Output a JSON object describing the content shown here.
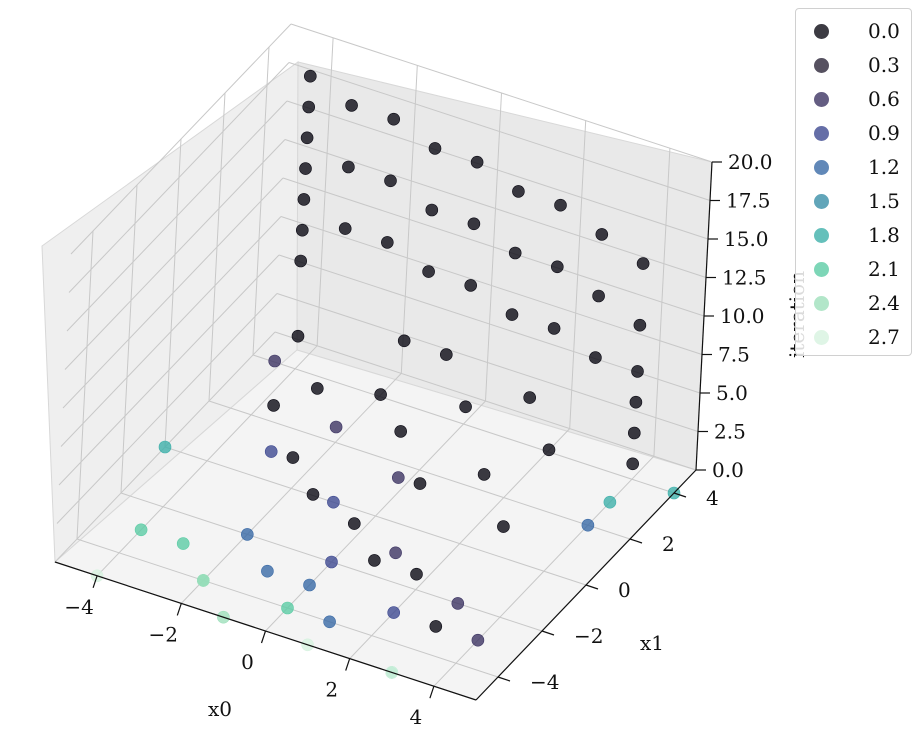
{
  "chart_data": {
    "type": "scatter",
    "projection": "3d",
    "xlabel": "x0",
    "ylabel": "x1",
    "zlabel": "iteration",
    "xlim": [
      -5,
      5
    ],
    "ylim": [
      -5,
      5
    ],
    "zlim": [
      0,
      20
    ],
    "x_ticks": [
      "−4",
      "−2",
      "0",
      "2",
      "4"
    ],
    "y_ticks": [
      "−4",
      "−2",
      "0",
      "2",
      "4"
    ],
    "z_ticks": [
      "0.0",
      "2.5",
      "5.0",
      "7.5",
      "10.0",
      "12.5",
      "15.0",
      "17.5",
      "20.0"
    ],
    "grid": true,
    "legend_position": "outside-top-right",
    "legend": [
      {
        "label": "0.0",
        "color": "#0b0a14"
      },
      {
        "label": "0.3",
        "color": "#2c2538"
      },
      {
        "label": "0.6",
        "color": "#3d3563"
      },
      {
        "label": "0.9",
        "color": "#3f4a91"
      },
      {
        "label": "1.2",
        "color": "#3a6aa6"
      },
      {
        "label": "1.5",
        "color": "#3a8fa8"
      },
      {
        "label": "1.8",
        "color": "#3fb0aa"
      },
      {
        "label": "2.1",
        "color": "#5ccca5"
      },
      {
        "label": "2.4",
        "color": "#9fe0bc"
      },
      {
        "label": "2.7",
        "color": "#d7f2e0"
      }
    ],
    "series": [
      {
        "color_value": 0.0,
        "points_note": "dense cloud: iteration 0–20 on a back wall near x1≈4, plus scattered points at low iterations",
        "points": [
          [
            -4,
            4,
            19
          ],
          [
            -4,
            4,
            17
          ],
          [
            -4,
            4,
            15
          ],
          [
            -4,
            4,
            13
          ],
          [
            -4,
            4,
            11
          ],
          [
            -4,
            4,
            9
          ],
          [
            -4,
            4,
            7
          ],
          [
            -3,
            4,
            18
          ],
          [
            -2,
            4,
            18
          ],
          [
            -1,
            4,
            17
          ],
          [
            0,
            4,
            17
          ],
          [
            1,
            4,
            16
          ],
          [
            2,
            4,
            16
          ],
          [
            3,
            4,
            15
          ],
          [
            4,
            4,
            14
          ],
          [
            -3,
            4,
            14
          ],
          [
            -2,
            4,
            14
          ],
          [
            -1,
            4,
            13
          ],
          [
            0,
            4,
            13
          ],
          [
            1,
            4,
            12
          ],
          [
            2,
            4,
            12
          ],
          [
            3,
            4,
            11
          ],
          [
            4,
            4,
            10
          ],
          [
            -3,
            4,
            10
          ],
          [
            -2,
            4,
            10
          ],
          [
            -1,
            4,
            9
          ],
          [
            0,
            4,
            9
          ],
          [
            1,
            4,
            8
          ],
          [
            2,
            4,
            8
          ],
          [
            3,
            4,
            7
          ],
          [
            4,
            4,
            7
          ],
          [
            4,
            4,
            5
          ],
          [
            4,
            4,
            3
          ],
          [
            4,
            4,
            1
          ],
          [
            -3,
            2,
            6
          ],
          [
            -2,
            1,
            5
          ],
          [
            -1,
            2,
            4
          ],
          [
            0,
            1,
            4
          ],
          [
            1,
            0,
            3
          ],
          [
            2,
            1,
            3
          ],
          [
            3,
            0,
            2
          ],
          [
            -2,
            0,
            2
          ],
          [
            -1,
            -1,
            2
          ],
          [
            0,
            -1,
            1
          ],
          [
            1,
            -2,
            1
          ],
          [
            2,
            -2,
            1
          ],
          [
            3,
            -3,
            0
          ],
          [
            -3,
            1,
            3
          ],
          [
            -1,
            3,
            6
          ],
          [
            0,
            3,
            6
          ],
          [
            1,
            2,
            5
          ],
          [
            2,
            3,
            5
          ],
          [
            3,
            2,
            4
          ]
        ]
      },
      {
        "color_value": 0.6,
        "points": [
          [
            -2,
            2,
            1
          ],
          [
            0,
            1,
            1
          ],
          [
            1,
            -1,
            0
          ],
          [
            3,
            -2,
            0
          ],
          [
            4,
            -3,
            0
          ],
          [
            -4,
            3,
            2
          ]
        ]
      },
      {
        "color_value": 0.9,
        "points": [
          [
            -1,
            0,
            0
          ],
          [
            0,
            -2,
            0
          ],
          [
            2,
            -3,
            0
          ],
          [
            -3,
            1,
            0
          ]
        ]
      },
      {
        "color_value": 1.2,
        "points": [
          [
            -2,
            -2,
            0
          ],
          [
            0,
            -3,
            0
          ],
          [
            1,
            -4,
            0
          ],
          [
            -1,
            -3,
            0
          ],
          [
            4,
            2,
            0
          ]
        ]
      },
      {
        "color_value": 1.8,
        "points": [
          [
            -5,
            0,
            0
          ],
          [
            4,
            3,
            0
          ],
          [
            5,
            4,
            0
          ]
        ]
      },
      {
        "color_value": 2.1,
        "points": [
          [
            -4,
            -3,
            0
          ],
          [
            -3,
            -3,
            0
          ],
          [
            -2,
            -4,
            0
          ],
          [
            0,
            -4,
            0
          ],
          [
            3,
            -5,
            0
          ]
        ]
      },
      {
        "color_value": 2.4,
        "points": [
          [
            -2,
            -4,
            0
          ],
          [
            -1,
            -5,
            0
          ]
        ]
      },
      {
        "color_value": 2.7,
        "points": [
          [
            -4,
            -5,
            0
          ],
          [
            1,
            -5,
            0
          ],
          [
            3,
            -5,
            0
          ]
        ]
      }
    ]
  }
}
